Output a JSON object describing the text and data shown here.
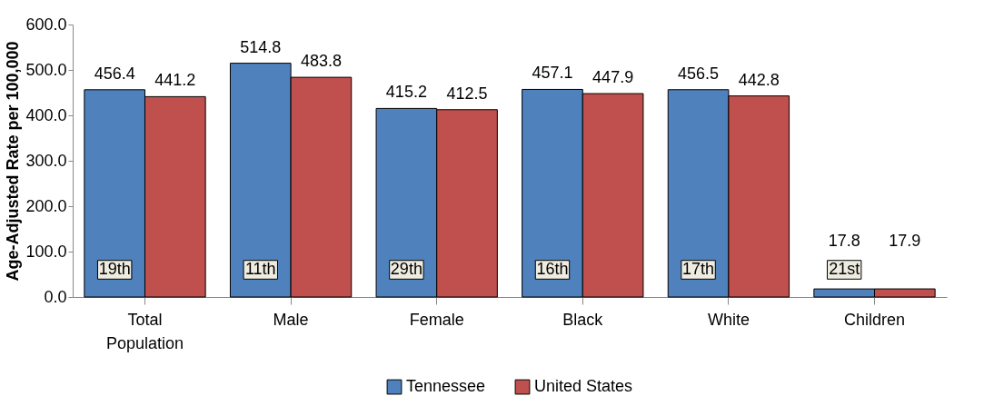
{
  "chart_data": {
    "type": "bar",
    "ylabel": "Age-Adjusted Rate per 100,000",
    "categories": [
      "Total Population",
      "Male",
      "Female",
      "Black",
      "White",
      "Children"
    ],
    "series": [
      {
        "name": "Tennessee",
        "color": "#4f81bd",
        "values": [
          456.4,
          514.8,
          415.2,
          457.1,
          456.5,
          17.8
        ]
      },
      {
        "name": "United States",
        "color": "#c0504d",
        "values": [
          441.2,
          483.8,
          412.5,
          447.9,
          442.8,
          17.9
        ]
      }
    ],
    "ylim": [
      0,
      600
    ],
    "yticks": [
      {
        "value": 0,
        "label": "0.0"
      },
      {
        "value": 100,
        "label": "100.0"
      },
      {
        "value": 200,
        "label": "200.0"
      },
      {
        "value": 300,
        "label": "300.0"
      },
      {
        "value": 400,
        "label": "400.0"
      },
      {
        "value": 500,
        "label": "500.0"
      },
      {
        "value": 600,
        "label": "600.0"
      }
    ],
    "data_labels": true,
    "grid": false,
    "legend": "bottom",
    "annotations": [
      "19th",
      "11th",
      "29th",
      "16th",
      "17th",
      "21st"
    ]
  }
}
